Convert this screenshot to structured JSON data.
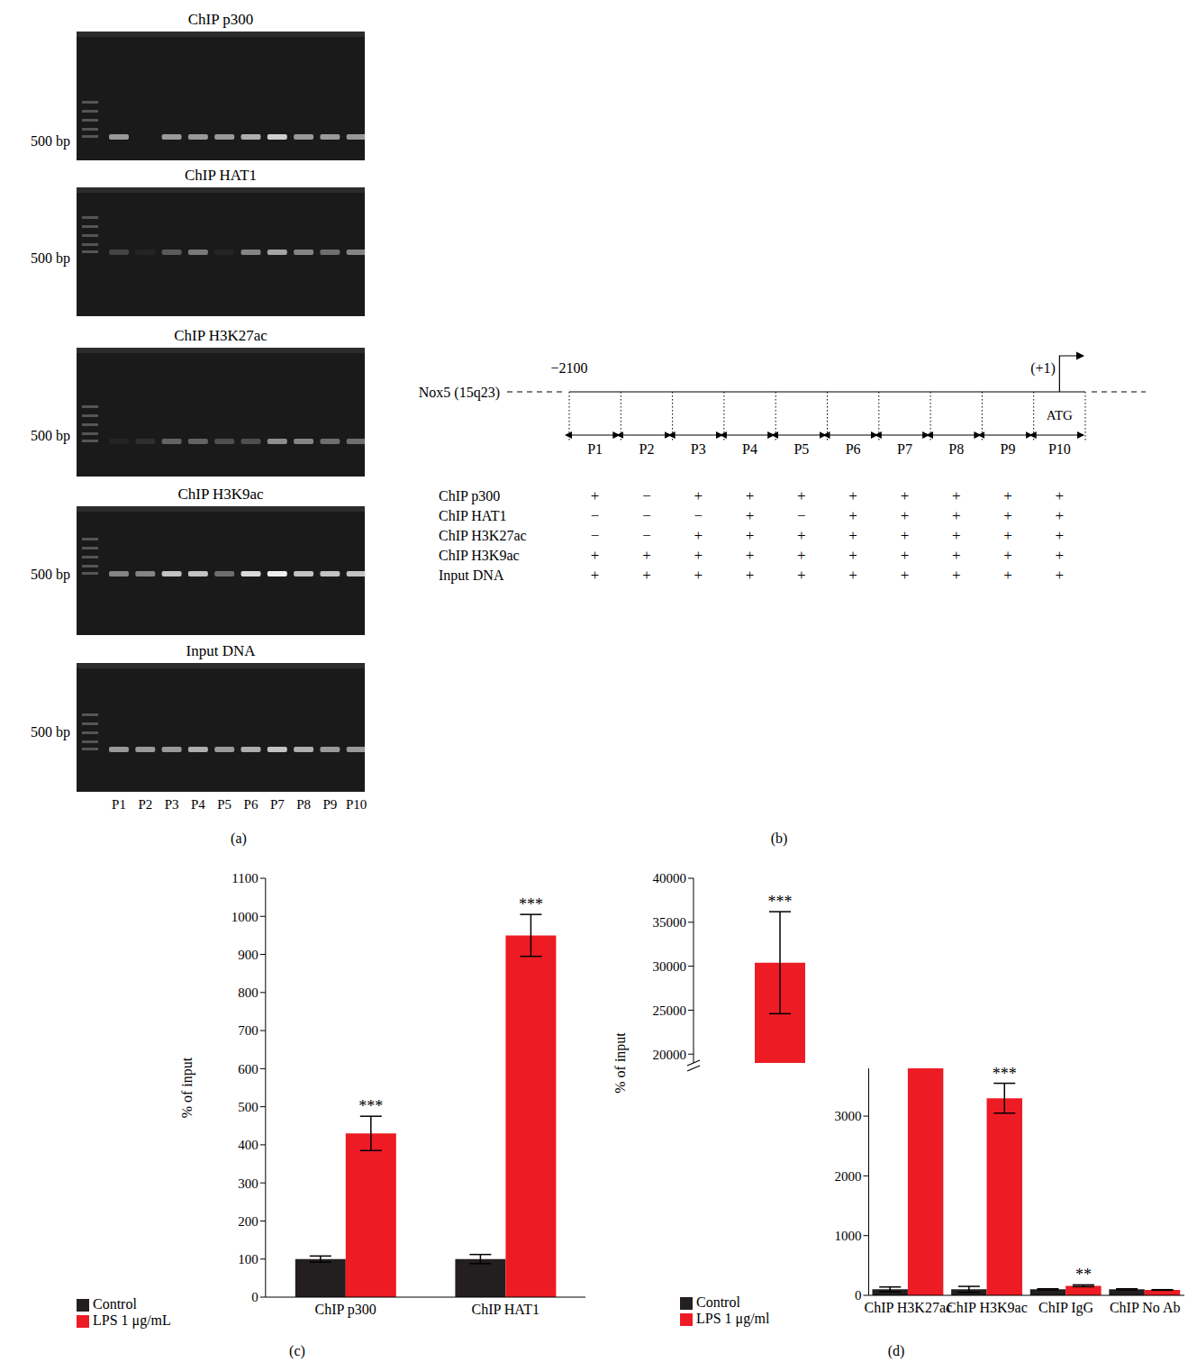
{
  "panel_labels": [
    "(a)",
    "(b)",
    "(c)",
    "(d)"
  ],
  "gels": {
    "marker_label": "500 bp",
    "lanes": [
      "P1",
      "P2",
      "P3",
      "P4",
      "P5",
      "P6",
      "P7",
      "P8",
      "P9",
      "P10"
    ],
    "blots": [
      {
        "title": "ChIP p300",
        "band_intensity": [
          0.6,
          0,
          0.6,
          0.6,
          0.6,
          0.7,
          0.85,
          0.6,
          0.6,
          0.6
        ]
      },
      {
        "title": "ChIP HAT1",
        "band_intensity": [
          0.2,
          0.05,
          0.3,
          0.45,
          0.05,
          0.5,
          0.65,
          0.5,
          0.4,
          0.5
        ]
      },
      {
        "title": "ChIP H3K27ac",
        "band_intensity": [
          0.05,
          0.1,
          0.35,
          0.35,
          0.25,
          0.25,
          0.55,
          0.5,
          0.4,
          0.4
        ]
      },
      {
        "title": "ChIP H3K9ac",
        "band_intensity": [
          0.5,
          0.5,
          0.8,
          0.8,
          0.4,
          0.9,
          1,
          0.8,
          0.8,
          0.8
        ]
      },
      {
        "title": "Input DNA",
        "band_intensity": [
          0.6,
          0.6,
          0.6,
          0.7,
          0.6,
          0.7,
          0.8,
          0.7,
          0.6,
          0.6
        ]
      }
    ]
  },
  "diagram": {
    "gene": "Nox5 (15q23)",
    "start": "−2100",
    "tss": "(+1)",
    "atg": "ATG",
    "segments": [
      "P1",
      "P2",
      "P3",
      "P4",
      "P5",
      "P6",
      "P7",
      "P8",
      "P9",
      "P10"
    ],
    "rows": [
      {
        "label": "ChIP p300",
        "marks": [
          "+",
          "−",
          "+",
          "+",
          "+",
          "+",
          "+",
          "+",
          "+",
          "+"
        ]
      },
      {
        "label": "ChIP HAT1",
        "marks": [
          "−",
          "−",
          "−",
          "+",
          "−",
          "+",
          "+",
          "+",
          "+",
          "+"
        ]
      },
      {
        "label": "ChIP H3K27ac",
        "marks": [
          "−",
          "−",
          "+",
          "+",
          "+",
          "+",
          "+",
          "+",
          "+",
          "+"
        ]
      },
      {
        "label": "ChIP H3K9ac",
        "marks": [
          "+",
          "+",
          "+",
          "+",
          "+",
          "+",
          "+",
          "+",
          "+",
          "+"
        ]
      },
      {
        "label": "Input DNA",
        "marks": [
          "+",
          "+",
          "+",
          "+",
          "+",
          "+",
          "+",
          "+",
          "+",
          "+"
        ]
      }
    ]
  },
  "chart_data": [
    {
      "type": "bar",
      "categories": [
        "ChIP p300",
        "ChIP HAT1"
      ],
      "y_label": "% of input",
      "ylim": [
        0,
        1100
      ],
      "yticks": [
        0,
        100,
        200,
        300,
        400,
        500,
        600,
        700,
        800,
        900,
        1000,
        1100
      ],
      "legend": "bottom left",
      "series": [
        {
          "name": "Control",
          "color": "#231f20",
          "values": [
            100,
            100
          ],
          "errors": [
            8,
            12
          ],
          "significance": [
            null,
            null
          ]
        },
        {
          "name": "LPS 1 μg/mL",
          "color": "#ed1c24",
          "values": [
            430,
            950
          ],
          "errors": [
            45,
            55
          ],
          "significance": [
            "***",
            "***"
          ]
        }
      ]
    },
    {
      "type": "bar",
      "categories": [
        "ChIP H3K27ac",
        "ChIP H3K9ac",
        "ChIP IgG",
        "ChIP No Ab"
      ],
      "y_label": "% of input",
      "ylim": [
        0,
        40000
      ],
      "y_break": [
        3800,
        19000
      ],
      "yticks": [
        0,
        1000,
        2000,
        3000,
        20000,
        25000,
        30000,
        35000,
        40000
      ],
      "legend": "bottom left",
      "series": [
        {
          "name": "Control",
          "color": "#231f20",
          "values": [
            100,
            100,
            100,
            100
          ],
          "errors": [
            40,
            50,
            10,
            10
          ],
          "significance": [
            null,
            null,
            null,
            null
          ]
        },
        {
          "name": "LPS 1 μg/ml",
          "color": "#ed1c24",
          "values": [
            30400,
            3300,
            160,
            90
          ],
          "errors": [
            5800,
            250,
            15,
            5
          ],
          "significance": [
            "***",
            "***",
            "**",
            null
          ]
        }
      ]
    }
  ]
}
